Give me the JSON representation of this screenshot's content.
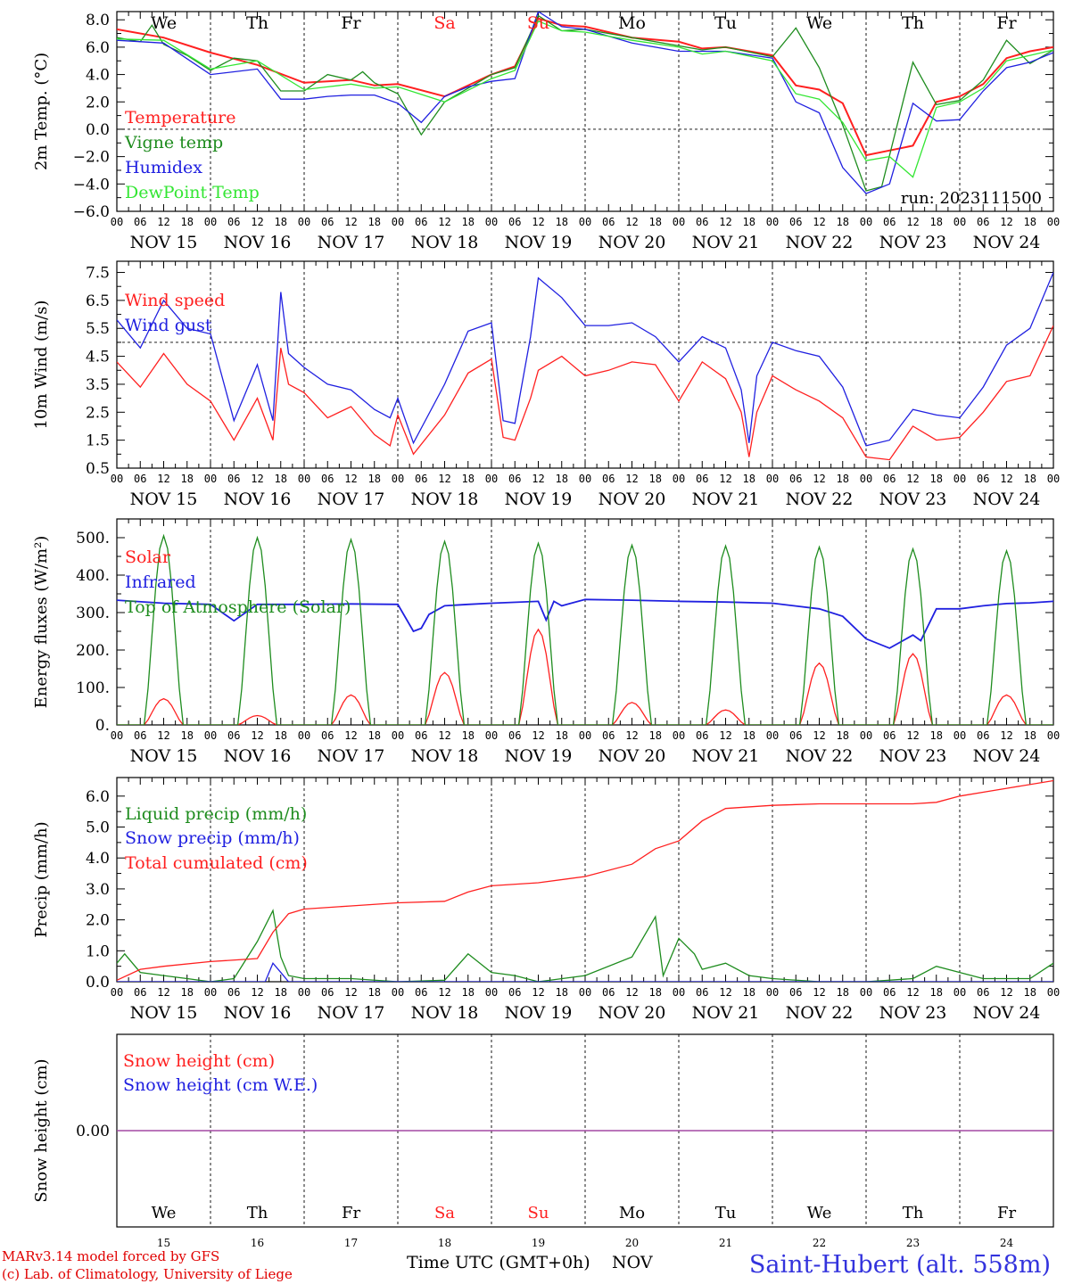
{
  "colors": {
    "red": "#ff2020",
    "green": "#1e8c1e",
    "blue": "#2020e0",
    "light_green": "#33e633",
    "purple": "#a040a0",
    "axis": "#000000",
    "credit": "#e00000",
    "station": "#3333dd"
  },
  "days": {
    "weekdays": [
      "We",
      "Th",
      "Fr",
      "Sa",
      "Su",
      "Mo",
      "Tu",
      "We",
      "Th",
      "Fr"
    ],
    "weekend_flags": [
      false,
      false,
      false,
      true,
      true,
      false,
      false,
      false,
      false,
      false
    ],
    "date_labels": [
      "NOV 15",
      "NOV 16",
      "NOV 17",
      "NOV 18",
      "NOV 19",
      "NOV 20",
      "NOV 21",
      "NOV 22",
      "NOV 23",
      "NOV 24"
    ],
    "day_numbers": [
      "15",
      "16",
      "17",
      "18",
      "19",
      "20",
      "21",
      "22",
      "23",
      "24"
    ],
    "hour_ticks": [
      "00",
      "06",
      "12",
      "18"
    ],
    "final_hour": "00"
  },
  "footer": {
    "credit_line1": "MARv3.14 model forced by GFS",
    "credit_line2": "(c) Lab. of Climatology, University of Liege",
    "xlabel": "Time UTC (GMT+0h)",
    "month": "NOV",
    "station": "Saint-Hubert (alt. 558m)"
  },
  "chart_data": [
    {
      "type": "line",
      "ylabel": "2m Temp. (°C)",
      "ylim": [
        -6,
        8.6
      ],
      "yticks": [
        -6,
        -4,
        -2,
        0,
        2,
        4,
        6,
        8
      ],
      "ytick_labels": [
        "−6.0",
        "−4.0",
        "−2.0",
        "0.0",
        "2.0",
        "4.0",
        "6.0",
        "8.0"
      ],
      "ref_line": 0,
      "annotation": "run: 2023111500",
      "x_unit": "hours since NOV 15 00 UTC",
      "xlim": [
        0,
        240
      ],
      "series": [
        {
          "name": "Temperature",
          "color": "red",
          "x": [
            0,
            12,
            24,
            36,
            48,
            54,
            60,
            66,
            72,
            84,
            96,
            102,
            108,
            114,
            120,
            132,
            144,
            150,
            156,
            168,
            174,
            180,
            186,
            192,
            204,
            210,
            216,
            222,
            228,
            234,
            240
          ],
          "y": [
            7.3,
            6.7,
            5.6,
            4.7,
            3.4,
            3.5,
            3.6,
            3.2,
            3.3,
            2.4,
            4.0,
            4.6,
            8.1,
            7.6,
            7.5,
            6.7,
            6.4,
            5.9,
            6.0,
            5.4,
            3.2,
            2.9,
            1.9,
            -1.9,
            -1.2,
            2.0,
            2.4,
            3.3,
            5.2,
            5.7,
            6.0
          ]
        },
        {
          "name": "Vigne temp",
          "color": "green",
          "x": [
            0,
            6,
            9,
            12,
            18,
            24,
            30,
            36,
            42,
            48,
            54,
            60,
            63,
            66,
            72,
            78,
            84,
            90,
            96,
            102,
            108,
            114,
            120,
            132,
            144,
            150,
            156,
            168,
            174,
            180,
            186,
            192,
            196,
            204,
            210,
            216,
            222,
            228,
            234,
            240
          ],
          "y": [
            6.7,
            6.4,
            7.6,
            6.2,
            5.4,
            4.3,
            5.2,
            5.0,
            2.8,
            2.8,
            4.0,
            3.6,
            4.2,
            3.4,
            2.6,
            -0.4,
            2.0,
            3.0,
            4.0,
            4.5,
            8.3,
            7.2,
            7.3,
            6.7,
            6.1,
            5.8,
            6.0,
            5.3,
            7.4,
            4.5,
            0.3,
            -4.5,
            -4.2,
            4.9,
            1.8,
            2.1,
            3.6,
            6.5,
            4.8,
            5.8
          ]
        },
        {
          "name": "Humidex",
          "color": "blue",
          "x": [
            0,
            12,
            24,
            36,
            42,
            48,
            54,
            60,
            66,
            72,
            78,
            84,
            90,
            96,
            102,
            108,
            114,
            120,
            132,
            144,
            150,
            156,
            168,
            174,
            180,
            186,
            192,
            198,
            204,
            210,
            216,
            222,
            228,
            234,
            240
          ],
          "y": [
            6.5,
            6.3,
            4.0,
            4.4,
            2.2,
            2.2,
            2.4,
            2.5,
            2.5,
            1.9,
            0.5,
            2.4,
            3.1,
            3.5,
            3.7,
            8.6,
            7.5,
            7.3,
            6.3,
            5.7,
            5.7,
            5.7,
            5.2,
            2.0,
            1.2,
            -2.8,
            -4.7,
            -4.0,
            1.9,
            0.6,
            0.7,
            2.8,
            4.5,
            4.9,
            5.6
          ]
        },
        {
          "name": "DewPoint Temp",
          "color": "light_green",
          "x": [
            0,
            12,
            24,
            36,
            48,
            54,
            60,
            66,
            72,
            84,
            96,
            102,
            108,
            114,
            120,
            132,
            144,
            150,
            156,
            168,
            174,
            180,
            186,
            192,
            198,
            204,
            210,
            216,
            222,
            228,
            234,
            240
          ],
          "y": [
            6.6,
            6.5,
            4.4,
            5.0,
            2.9,
            3.1,
            3.3,
            3.0,
            3.1,
            2.0,
            3.7,
            4.3,
            7.9,
            7.2,
            7.1,
            6.5,
            6.0,
            5.5,
            5.7,
            5.0,
            2.6,
            2.2,
            0.5,
            -2.3,
            -2.0,
            -3.5,
            1.6,
            2.0,
            3.0,
            5.0,
            5.4,
            5.8
          ]
        }
      ]
    },
    {
      "type": "line",
      "ylabel": "10m Wind (m/s)",
      "ylim": [
        0.5,
        7.9
      ],
      "yticks": [
        0.5,
        1.5,
        2.5,
        3.5,
        4.5,
        5.5,
        6.5,
        7.5
      ],
      "ytick_labels": [
        "0.5",
        "1.5",
        "2.5",
        "3.5",
        "4.5",
        "5.5",
        "6.5",
        "7.5"
      ],
      "ref_line": 5,
      "xlim": [
        0,
        240
      ],
      "series": [
        {
          "name": "Wind speed",
          "color": "red",
          "x": [
            0,
            6,
            12,
            18,
            24,
            30,
            36,
            40,
            42,
            44,
            48,
            54,
            60,
            66,
            70,
            72,
            76,
            84,
            90,
            96,
            99,
            102,
            106,
            108,
            114,
            120,
            126,
            132,
            138,
            144,
            150,
            156,
            160,
            162,
            164,
            168,
            174,
            180,
            186,
            192,
            198,
            204,
            210,
            216,
            222,
            228,
            234,
            240
          ],
          "y": [
            4.3,
            3.4,
            4.6,
            3.5,
            2.9,
            1.5,
            3.0,
            1.5,
            4.8,
            3.5,
            3.2,
            2.3,
            2.7,
            1.7,
            1.3,
            2.4,
            1.0,
            2.4,
            3.9,
            4.4,
            1.6,
            1.5,
            3.0,
            4.0,
            4.5,
            3.8,
            4.0,
            4.3,
            4.2,
            2.9,
            4.3,
            3.7,
            2.5,
            0.9,
            2.5,
            3.8,
            3.3,
            2.9,
            2.3,
            0.9,
            0.8,
            2.0,
            1.5,
            1.6,
            2.5,
            3.6,
            3.8,
            5.6
          ]
        },
        {
          "name": "Wind gust",
          "color": "blue",
          "x": [
            0,
            6,
            12,
            18,
            24,
            30,
            36,
            40,
            42,
            44,
            48,
            54,
            60,
            66,
            70,
            72,
            76,
            84,
            90,
            96,
            99,
            102,
            106,
            108,
            114,
            120,
            126,
            132,
            138,
            144,
            150,
            156,
            160,
            162,
            164,
            168,
            174,
            180,
            186,
            192,
            198,
            204,
            210,
            216,
            222,
            228,
            234,
            240
          ],
          "y": [
            5.8,
            4.8,
            6.5,
            5.5,
            5.3,
            2.2,
            4.2,
            2.2,
            6.8,
            4.6,
            4.1,
            3.5,
            3.3,
            2.6,
            2.3,
            3.0,
            1.4,
            3.5,
            5.4,
            5.7,
            2.2,
            2.1,
            5.2,
            7.3,
            6.6,
            5.6,
            5.6,
            5.7,
            5.2,
            4.3,
            5.2,
            4.8,
            3.3,
            1.4,
            3.8,
            5.0,
            4.7,
            4.5,
            3.4,
            1.3,
            1.5,
            2.6,
            2.4,
            2.3,
            3.4,
            4.9,
            5.5,
            7.5
          ]
        }
      ]
    },
    {
      "type": "line",
      "ylabel": "Energy fluxes (W/m²)",
      "ylim": [
        0,
        550
      ],
      "yticks": [
        0,
        100,
        200,
        300,
        400,
        500
      ],
      "ytick_labels": [
        "0.",
        "100.",
        "200.",
        "300.",
        "400.",
        "500."
      ],
      "xlim": [
        0,
        240
      ],
      "series": [
        {
          "name": "Solar",
          "color": "red",
          "peaks": [
            70,
            25,
            80,
            140,
            255,
            60,
            40,
            165,
            190,
            80
          ]
        },
        {
          "name": "Infrared",
          "color": "blue",
          "x": [
            0,
            12,
            24,
            30,
            36,
            48,
            60,
            72,
            76,
            78,
            80,
            84,
            90,
            96,
            108,
            110,
            112,
            114,
            120,
            132,
            144,
            156,
            168,
            180,
            186,
            192,
            198,
            204,
            206,
            210,
            216,
            222,
            228,
            234,
            240
          ],
          "y": [
            333,
            325,
            322,
            278,
            322,
            322,
            323,
            322,
            250,
            258,
            295,
            318,
            322,
            325,
            330,
            280,
            330,
            318,
            335,
            333,
            330,
            328,
            325,
            310,
            290,
            230,
            205,
            240,
            225,
            310,
            310,
            318,
            324,
            326,
            330
          ]
        },
        {
          "name": "Top of Atmosphere (Solar)",
          "color": "green",
          "peaks": [
            505,
            500,
            495,
            490,
            485,
            480,
            478,
            475,
            470,
            465
          ]
        }
      ]
    },
    {
      "type": "line",
      "ylabel": "Precip (mm/h)",
      "ylim": [
        0,
        6.6
      ],
      "yticks": [
        0,
        1,
        2,
        3,
        4,
        5,
        6
      ],
      "ytick_labels": [
        "0.0",
        "1.0",
        "2.0",
        "3.0",
        "4.0",
        "5.0",
        "6.0"
      ],
      "xlim": [
        0,
        240
      ],
      "series": [
        {
          "name": "Liquid precip (mm/h)",
          "color": "green",
          "x": [
            0,
            2,
            6,
            12,
            18,
            24,
            30,
            36,
            40,
            42,
            44,
            48,
            60,
            72,
            84,
            90,
            96,
            102,
            108,
            120,
            132,
            138,
            140,
            144,
            148,
            150,
            156,
            162,
            168,
            180,
            192,
            204,
            210,
            216,
            222,
            228,
            234,
            240
          ],
          "y": [
            0.6,
            0.9,
            0.3,
            0.2,
            0.1,
            0,
            0.1,
            1.3,
            2.3,
            0.8,
            0.2,
            0.1,
            0.1,
            0,
            0.05,
            0.9,
            0.3,
            0.2,
            0,
            0.2,
            0.8,
            2.1,
            0.2,
            1.4,
            0.9,
            0.4,
            0.6,
            0.2,
            0.1,
            0,
            0,
            0.1,
            0.5,
            0.3,
            0.1,
            0.1,
            0.1,
            0.6
          ]
        },
        {
          "name": "Snow precip (mm/h)",
          "color": "blue",
          "x": [
            0,
            38,
            40,
            42,
            44,
            240
          ],
          "y": [
            0,
            0,
            0.6,
            0.3,
            0,
            0
          ]
        },
        {
          "name": "Total cumulated (cm)",
          "color": "red",
          "x": [
            0,
            6,
            12,
            24,
            36,
            40,
            44,
            48,
            60,
            72,
            84,
            90,
            96,
            108,
            120,
            132,
            138,
            144,
            150,
            156,
            168,
            180,
            192,
            204,
            210,
            216,
            228,
            240
          ],
          "y": [
            0.05,
            0.4,
            0.5,
            0.65,
            0.75,
            1.6,
            2.2,
            2.35,
            2.45,
            2.55,
            2.6,
            2.9,
            3.1,
            3.2,
            3.4,
            3.8,
            4.3,
            4.55,
            5.2,
            5.6,
            5.7,
            5.75,
            5.75,
            5.75,
            5.8,
            6.0,
            6.25,
            6.5
          ]
        }
      ]
    },
    {
      "type": "line",
      "ylabel": "Snow height (cm)",
      "ylim": [
        -1,
        1
      ],
      "yticks": [
        0
      ],
      "ytick_labels": [
        "0.00"
      ],
      "xlim": [
        0,
        240
      ],
      "series": [
        {
          "name": "Snow height (cm)",
          "color": "red",
          "x": [
            0,
            240
          ],
          "y": [
            0,
            0
          ]
        },
        {
          "name": "Snow height (cm W.E.)",
          "color": "blue",
          "x": [
            0,
            240
          ],
          "y": [
            0,
            0
          ]
        }
      ]
    }
  ]
}
